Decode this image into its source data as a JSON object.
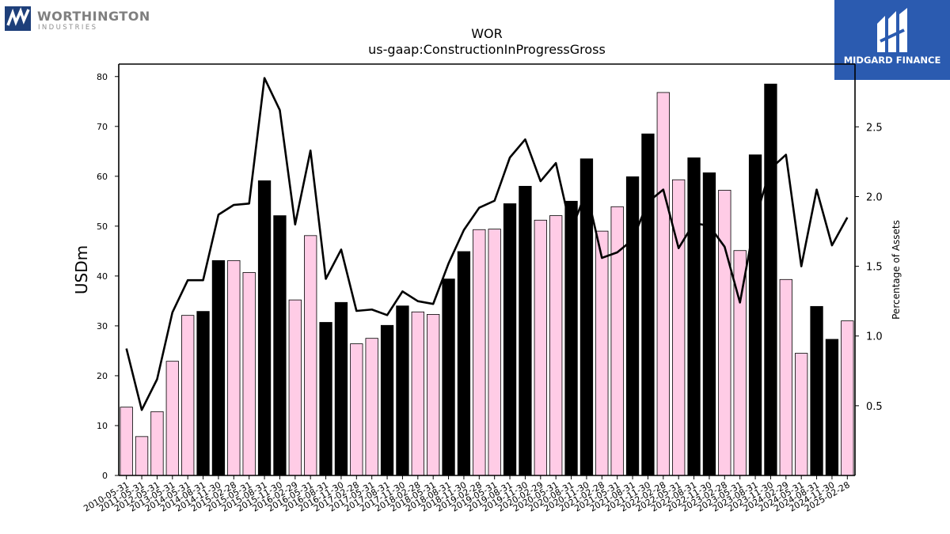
{
  "branding": {
    "left_logo_name": "WORTHINGTON",
    "left_logo_sub": "INDUSTRIES",
    "right_logo_text": "MIDGARD FINANCE"
  },
  "chart_data": {
    "type": "bar",
    "title": "WOR",
    "subtitle": "us-gaap:ConstructionInProgressGross",
    "ylabel": "USDm",
    "y2label": "Percentage of Assets",
    "ylim": [
      0,
      82.5
    ],
    "y2lim": [
      0,
      2.95
    ],
    "yticks": [
      0,
      10,
      20,
      30,
      40,
      50,
      60,
      70,
      80
    ],
    "y2ticks": [
      0.5,
      1.0,
      1.5,
      2.0,
      2.5
    ],
    "categories": [
      "2010-05-31",
      "2011-05-31",
      "2012-05-31",
      "2013-05-31",
      "2014-05-31",
      "2014-08-31",
      "2014-11-30",
      "2015-02-28",
      "2015-05-31",
      "2015-08-31",
      "2015-11-30",
      "2016-02-29",
      "2016-05-31",
      "2016-08-31",
      "2016-11-30",
      "2017-02-28",
      "2017-05-31",
      "2017-08-31",
      "2017-11-30",
      "2018-02-28",
      "2018-05-31",
      "2018-08-31",
      "2018-11-30",
      "2019-02-28",
      "2019-05-31",
      "2019-08-31",
      "2019-11-30",
      "2020-02-29",
      "2020-05-31",
      "2020-08-31",
      "2020-11-30",
      "2021-02-28",
      "2021-05-31",
      "2021-08-31",
      "2021-11-30",
      "2022-02-28",
      "2022-05-31",
      "2022-08-31",
      "2022-11-30",
      "2023-02-28",
      "2023-05-31",
      "2023-08-31",
      "2023-11-30",
      "2024-02-29",
      "2024-05-31",
      "2024-08-31",
      "2024-11-30",
      "2025-02-28"
    ],
    "series": [
      {
        "values": [
          13.7,
          7.8,
          12.8,
          22.9,
          32.1,
          32.9,
          43.1,
          43.1,
          40.7,
          59.1,
          52.1,
          35.2,
          48.1,
          30.7,
          34.7,
          26.4,
          27.5,
          30.1,
          34.0,
          32.8,
          32.3,
          39.4,
          44.9,
          49.3,
          49.4,
          54.5,
          58.0,
          51.2,
          52.1,
          55.0,
          63.5,
          49.0,
          53.9,
          59.9,
          68.5,
          76.8,
          59.3,
          63.7,
          60.7,
          57.2,
          45.1,
          64.3,
          78.5,
          39.3,
          24.5,
          33.9,
          27.3,
          31.0
        ]
      },
      {
        "values": [
          0.91,
          0.47,
          0.69,
          1.17,
          1.4,
          1.4,
          1.87,
          1.94,
          1.95,
          2.85,
          2.62,
          1.8,
          2.33,
          1.41,
          1.62,
          1.18,
          1.19,
          1.15,
          1.32,
          1.25,
          1.23,
          1.52,
          1.76,
          1.92,
          1.97,
          2.28,
          2.41,
          2.11,
          2.24,
          1.76,
          2.04,
          1.56,
          1.6,
          1.69,
          1.96,
          2.05,
          1.63,
          1.81,
          1.79,
          1.64,
          1.24,
          1.84,
          2.2,
          2.3,
          1.5,
          2.05,
          1.65,
          1.85
        ]
      }
    ],
    "highlight_color": "#000000",
    "bar_color": "#ffcce6",
    "line_color": "#000000",
    "grid": false
  }
}
